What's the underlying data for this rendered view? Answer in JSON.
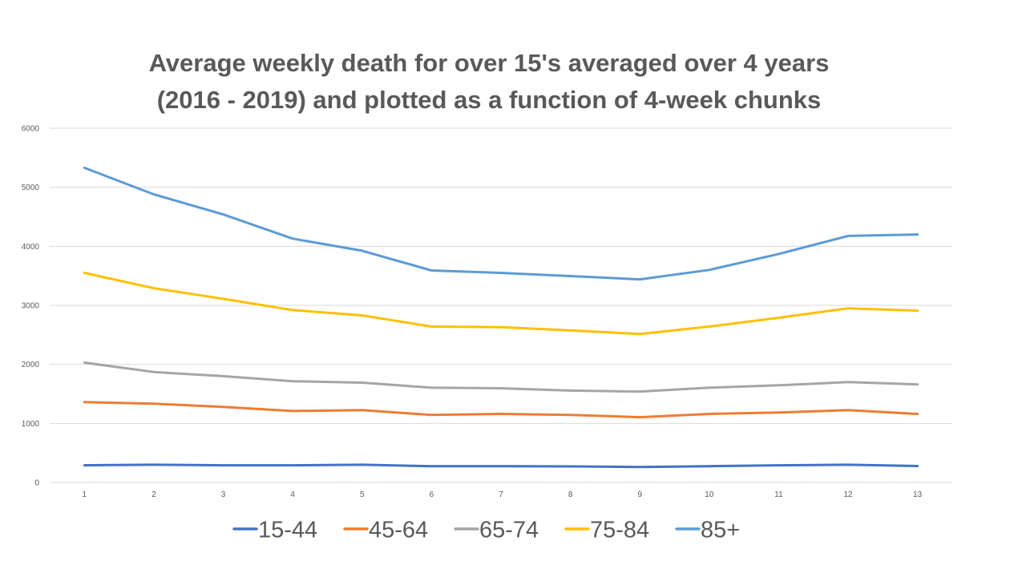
{
  "chart_data": {
    "type": "line",
    "title_lines": [
      "Average weekly death for over 15's averaged over 4 years",
      "(2016 - 2019) and plotted as a function of 4-week chunks"
    ],
    "xlabel": "",
    "ylabel": "",
    "x": [
      "1",
      "2",
      "3",
      "4",
      "5",
      "6",
      "7",
      "8",
      "9",
      "10",
      "11",
      "12",
      "13"
    ],
    "y_ticks": [
      "0",
      "1000",
      "2000",
      "3000",
      "4000",
      "5000",
      "6000"
    ],
    "ylim": [
      0,
      6000
    ],
    "grid": "horizontal",
    "legend_position": "bottom",
    "series": [
      {
        "name": "15-44",
        "color": "#4472C4",
        "values": [
          290,
          300,
          290,
          290,
          300,
          275,
          275,
          272,
          262,
          275,
          290,
          300,
          278
        ]
      },
      {
        "name": "45-64",
        "color": "#ED7D31",
        "values": [
          1360,
          1335,
          1280,
          1210,
          1225,
          1145,
          1160,
          1145,
          1105,
          1160,
          1185,
          1225,
          1160
        ]
      },
      {
        "name": "65-74",
        "color": "#A5A5A5",
        "values": [
          2030,
          1870,
          1800,
          1715,
          1690,
          1605,
          1595,
          1555,
          1540,
          1605,
          1645,
          1700,
          1660
        ]
      },
      {
        "name": "75-84",
        "color": "#FFC000",
        "values": [
          3550,
          3290,
          3110,
          2920,
          2830,
          2640,
          2630,
          2575,
          2515,
          2640,
          2790,
          2950,
          2910
        ]
      },
      {
        "name": "85+",
        "color": "#5B9BD5",
        "values": [
          5330,
          4880,
          4540,
          4130,
          3925,
          3590,
          3550,
          3495,
          3440,
          3600,
          3870,
          4175,
          4200
        ]
      }
    ]
  }
}
